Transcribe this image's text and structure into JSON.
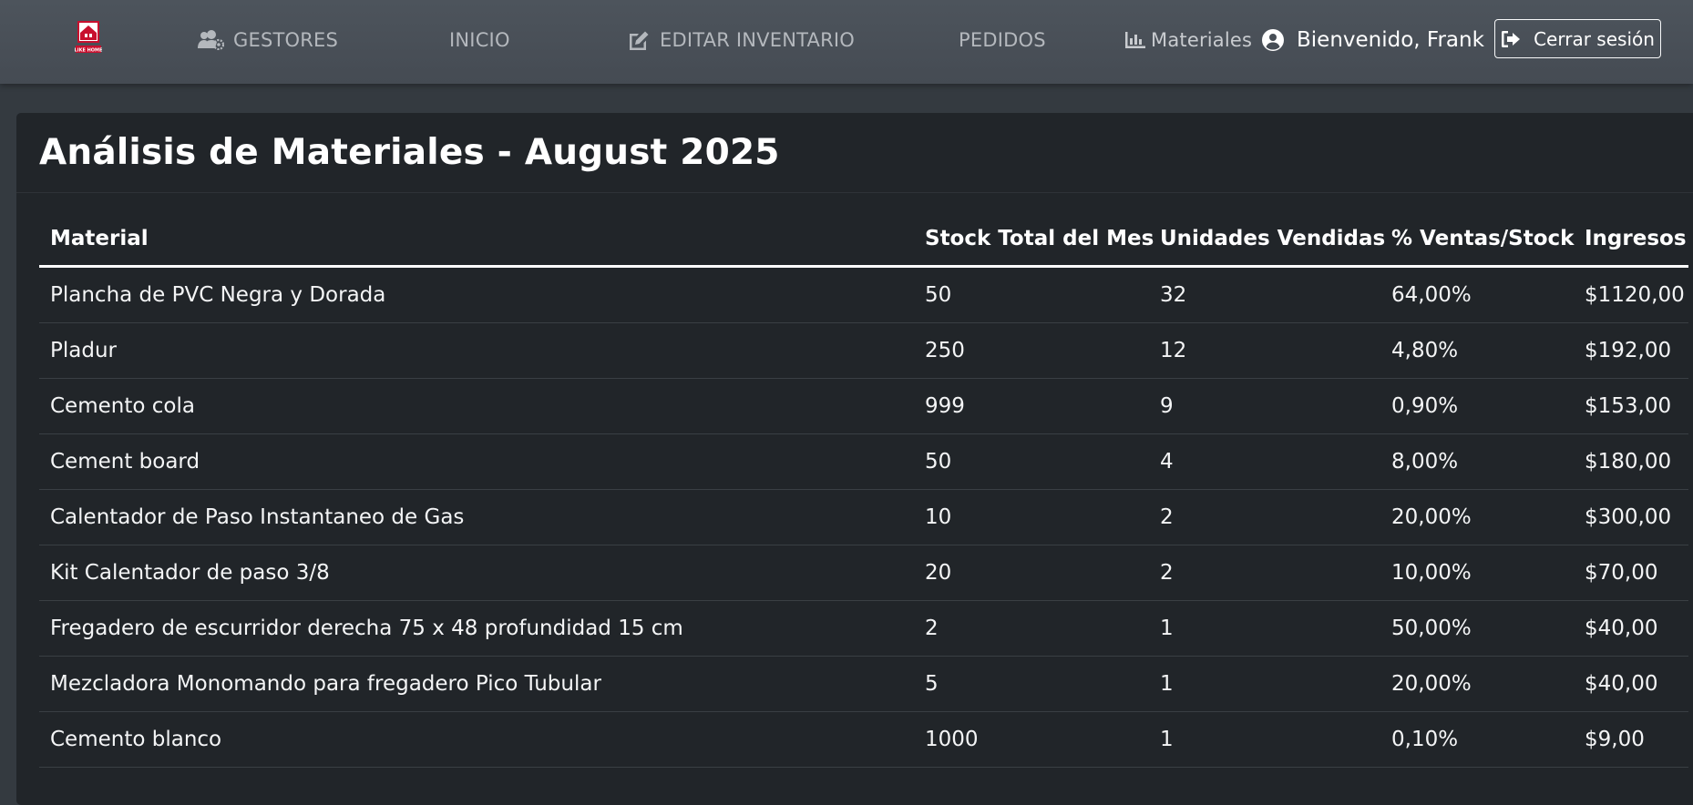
{
  "nav": {
    "logo_text": "LIKE HOME",
    "items": [
      {
        "label": "GESTORES",
        "icon": "users-cog-icon"
      },
      {
        "label": "INICIO"
      },
      {
        "label": "EDITAR INVENTARIO",
        "icon": "edit-icon"
      },
      {
        "label": "PEDIDOS"
      },
      {
        "label": "Materiales",
        "icon": "chart-bar-icon"
      }
    ],
    "user_greeting": "Bienvenido, Frank",
    "logout_label": "Cerrar sesión"
  },
  "page": {
    "title": "Análisis de Materiales - August 2025"
  },
  "table": {
    "headers": [
      "Material",
      "Stock Total del Mes",
      "Unidades Vendidas",
      "% Ventas/Stock",
      "Ingresos"
    ],
    "rows": [
      [
        "Plancha de PVC Negra y Dorada",
        "50",
        "32",
        "64,00%",
        "$1120,00"
      ],
      [
        "Pladur",
        "250",
        "12",
        "4,80%",
        "$192,00"
      ],
      [
        "Cemento cola",
        "999",
        "9",
        "0,90%",
        "$153,00"
      ],
      [
        "Cement board",
        "50",
        "4",
        "8,00%",
        "$180,00"
      ],
      [
        "Calentador de Paso Instantaneo de Gas",
        "10",
        "2",
        "20,00%",
        "$300,00"
      ],
      [
        "Kit Calentador de paso 3/8",
        "20",
        "2",
        "10,00%",
        "$70,00"
      ],
      [
        "Fregadero de escurridor derecha 75 x 48 profundidad 15 cm",
        "2",
        "1",
        "50,00%",
        "$40,00"
      ],
      [
        "Mezcladora Monomando para fregadero Pico Tubular",
        "5",
        "1",
        "20,00%",
        "$40,00"
      ],
      [
        "Cemento blanco",
        "1000",
        "1",
        "0,10%",
        "$9,00"
      ]
    ]
  },
  "colors": {
    "navbar": "#4a5058",
    "page_bg": "#343a40",
    "card_bg": "#212529",
    "logo_red": "#c8102e"
  }
}
